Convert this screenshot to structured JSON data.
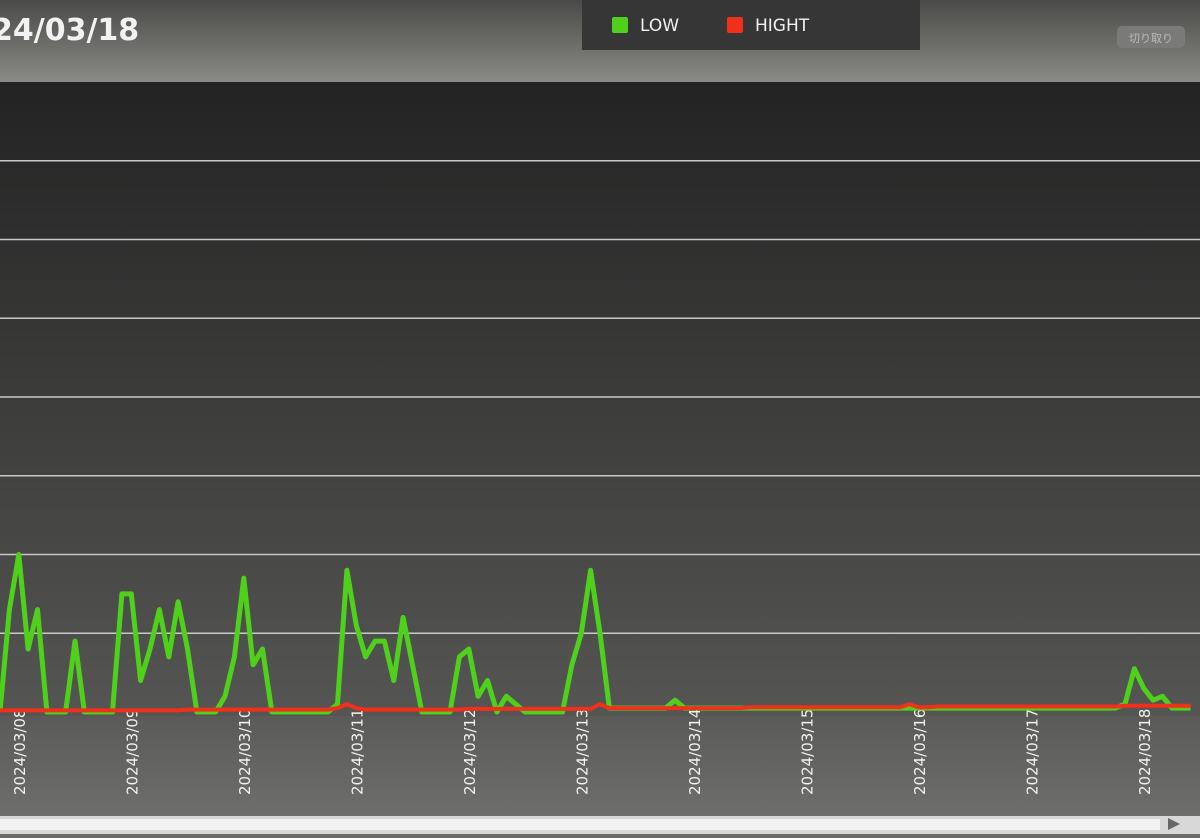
{
  "header": {
    "title": "24/03/18",
    "button": "切り取り"
  },
  "chart_data": {
    "type": "line",
    "categories": [
      null,
      null,
      "2024/03/08",
      null,
      null,
      null,
      null,
      null,
      null,
      null,
      null,
      null,
      null,
      null,
      "2024/03/09",
      null,
      null,
      null,
      null,
      null,
      null,
      null,
      null,
      null,
      null,
      null,
      "2024/03/10",
      null,
      null,
      null,
      null,
      null,
      null,
      null,
      null,
      null,
      null,
      null,
      "2024/03/11",
      null,
      null,
      null,
      null,
      null,
      null,
      null,
      null,
      null,
      null,
      null,
      "2024/03/12",
      null,
      null,
      null,
      null,
      null,
      null,
      null,
      null,
      null,
      null,
      null,
      "2024/03/13",
      null,
      null,
      null,
      null,
      null,
      null,
      null,
      null,
      null,
      null,
      null,
      "2024/03/14",
      null,
      null,
      null,
      null,
      null,
      null,
      null,
      null,
      null,
      null,
      null,
      "2024/03/15",
      null,
      null,
      null,
      null,
      null,
      null,
      null,
      null,
      null,
      null,
      null,
      "2024/03/16",
      null,
      null,
      null,
      null,
      null,
      null,
      null,
      null,
      null,
      null,
      null,
      "2024/03/17",
      null,
      null,
      null,
      null,
      null,
      null,
      null,
      null,
      null,
      null,
      null,
      "2024/03/18",
      null,
      null,
      null,
      null,
      null
    ],
    "ylim": [
      0,
      8
    ],
    "grid": true,
    "series": [
      {
        "name": "LOW",
        "color": "#4fd11c",
        "values": [
          0,
          1.3,
          2.0,
          0.8,
          1.3,
          0,
          0,
          0,
          0.9,
          0,
          0,
          0,
          0,
          1.5,
          1.5,
          0.4,
          0.8,
          1.3,
          0.7,
          1.4,
          0.8,
          0,
          0,
          0,
          0.2,
          0.7,
          1.7,
          0.6,
          0.8,
          0,
          0,
          0,
          0,
          0,
          0,
          0,
          0.1,
          1.8,
          1.1,
          0.7,
          0.9,
          0.9,
          0.4,
          1.2,
          0.6,
          0,
          0,
          0,
          0,
          0.7,
          0.8,
          0.2,
          0.4,
          0,
          0.2,
          0.1,
          0,
          0,
          0,
          0,
          0,
          0.6,
          1.0,
          1.8,
          1.0,
          0.05,
          0.05,
          0.05,
          0.05,
          0.05,
          0.05,
          0.05,
          0.15,
          0.05,
          0.05,
          0.05,
          0.05,
          0.05,
          0.05,
          0.05,
          0.05,
          0.05,
          0.05,
          0.05,
          0.05,
          0.05,
          0.05,
          0.05,
          0.05,
          0.05,
          0.05,
          0.05,
          0.05,
          0.05,
          0.05,
          0.05,
          0.05,
          0.05,
          0.05,
          0.05,
          0.05,
          0.05,
          0.05,
          0.05,
          0.05,
          0.05,
          0.05,
          0.05,
          0.05,
          0.05,
          0.05,
          0.05,
          0.05,
          0.05,
          0.05,
          0.05,
          0.05,
          0.05,
          0.05,
          0.05,
          0.1,
          0.55,
          0.3,
          0.15,
          0.2,
          0.05,
          0.05,
          0.05
        ]
      },
      {
        "name": "HIGHT",
        "color": "#f0301a",
        "values": [
          0.02,
          0.02,
          0.02,
          0.02,
          0.02,
          0.02,
          0.02,
          0.02,
          0.02,
          0.02,
          0.02,
          0.02,
          0.02,
          0.02,
          0.02,
          0.02,
          0.02,
          0.02,
          0.02,
          0.02,
          0.03,
          0.03,
          0.03,
          0.03,
          0.03,
          0.03,
          0.03,
          0.03,
          0.03,
          0.03,
          0.03,
          0.03,
          0.03,
          0.03,
          0.03,
          0.03,
          0.05,
          0.1,
          0.05,
          0.03,
          0.03,
          0.03,
          0.03,
          0.03,
          0.03,
          0.03,
          0.03,
          0.03,
          0.03,
          0.03,
          0.04,
          0.04,
          0.04,
          0.04,
          0.04,
          0.04,
          0.04,
          0.04,
          0.04,
          0.04,
          0.04,
          0.04,
          0.04,
          0.04,
          0.1,
          0.05,
          0.05,
          0.05,
          0.05,
          0.05,
          0.05,
          0.05,
          0.05,
          0.05,
          0.05,
          0.05,
          0.05,
          0.05,
          0.05,
          0.05,
          0.06,
          0.06,
          0.06,
          0.06,
          0.06,
          0.06,
          0.06,
          0.06,
          0.06,
          0.06,
          0.06,
          0.06,
          0.06,
          0.06,
          0.06,
          0.06,
          0.06,
          0.1,
          0.06,
          0.06,
          0.07,
          0.07,
          0.07,
          0.07,
          0.07,
          0.07,
          0.07,
          0.07,
          0.07,
          0.07,
          0.07,
          0.07,
          0.07,
          0.07,
          0.07,
          0.07,
          0.07,
          0.07,
          0.07,
          0.07,
          0.08,
          0.08,
          0.08,
          0.08,
          0.08,
          0.08,
          0.08,
          0.08
        ]
      }
    ]
  }
}
